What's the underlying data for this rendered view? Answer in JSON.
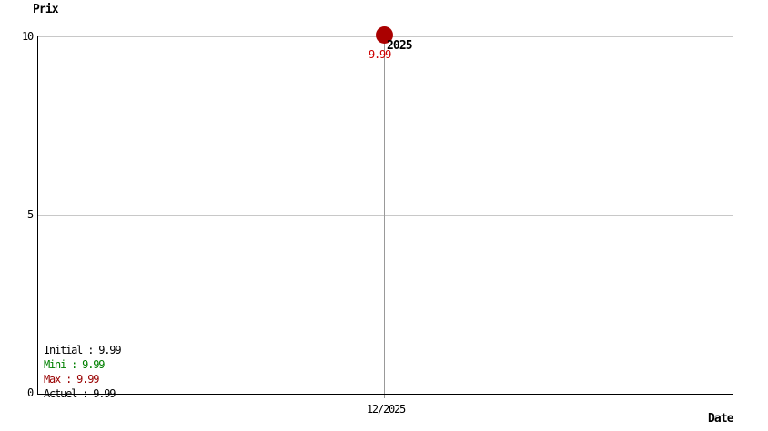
{
  "chart": {
    "title": "Prix",
    "x_axis_title": "Date",
    "y_ticks": [
      "10",
      "5",
      "0"
    ],
    "x_tick": "12/2025",
    "point": {
      "year_label": "2025",
      "value_label": "9.99"
    },
    "legend": {
      "items": [
        {
          "label": "Initial : 9.99",
          "color": "#000000"
        },
        {
          "label": "Mini : 9.99",
          "color": "#008000"
        },
        {
          "label": "Max : 9.99",
          "color": "#990000"
        },
        {
          "label": "Actuel : 9.99",
          "color": "#000000"
        }
      ]
    },
    "colors": {
      "point": "#AA0000",
      "point_value_text": "#CC0000",
      "grid_horizontal": "#C8C8C8",
      "grid_vertical": "#999999",
      "axis": "#000000"
    }
  },
  "chart_data": {
    "type": "scatter",
    "title": "Prix",
    "xlabel": "Date",
    "ylabel": "Prix",
    "x": [
      "12/2025"
    ],
    "series": [
      {
        "name": "Prix",
        "values": [
          9.99
        ]
      }
    ],
    "ylim": [
      0,
      10
    ],
    "yticks": [
      0,
      5,
      10
    ],
    "xticks": [
      "12/2025"
    ],
    "grid": true,
    "legend_position": "bottom-left",
    "legend_entries": [
      "Initial : 9.99",
      "Mini : 9.99",
      "Max : 9.99",
      "Actuel : 9.99"
    ],
    "annotations": [
      {
        "text": "2025",
        "x": "12/2025",
        "y": 9.99
      },
      {
        "text": "9.99",
        "x": "12/2025",
        "y": 9.99
      }
    ],
    "stats": {
      "initial": 9.99,
      "mini": 9.99,
      "max": 9.99,
      "actuel": 9.99
    },
    "point_color": "#AA0000"
  }
}
